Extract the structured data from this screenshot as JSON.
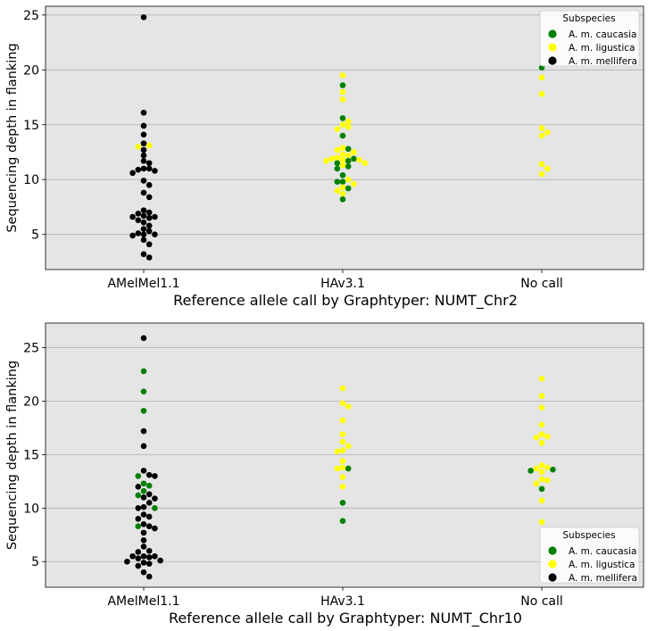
{
  "colors": {
    "plot_bg": "#e5e5e5",
    "grid": "#b0b0b0",
    "A. m. caucasia": "#008000",
    "A. m. ligustica": "#ffff00",
    "A. m. mellifera": "#000000"
  },
  "chart_data": [
    {
      "type": "scatter",
      "style": "swarm",
      "categories": [
        "AMelMel1.1",
        "HAv3.1",
        "No call"
      ],
      "xlabel": "Reference allele call by Graphtyper: NUMT_Chr2",
      "ylabel": "Sequencing depth in flanking",
      "ylim": [
        1.8,
        25.8
      ],
      "yticks": [
        5,
        10,
        15,
        20,
        25
      ],
      "grid": "horizontal",
      "legend": {
        "title": "Subspecies",
        "position": "top-right",
        "entries": [
          "A. m. caucasia",
          "A. m. ligustica",
          "A. m. mellifera"
        ]
      },
      "points": [
        {
          "c": 0,
          "s": "A. m. mellifera",
          "y": 24.8
        },
        {
          "c": 0,
          "s": "A. m. mellifera",
          "y": 16.1
        },
        {
          "c": 0,
          "s": "A. m. mellifera",
          "y": 14.9
        },
        {
          "c": 0,
          "s": "A. m. mellifera",
          "y": 14.1
        },
        {
          "c": 0,
          "s": "A. m. mellifera",
          "y": 13.3
        },
        {
          "c": 0,
          "s": "A. m. ligustica",
          "y": 13.1
        },
        {
          "c": 0,
          "s": "A. m. ligustica",
          "y": 13.0
        },
        {
          "c": 0,
          "s": "A. m. mellifera",
          "y": 12.7
        },
        {
          "c": 0,
          "s": "A. m. mellifera",
          "y": 12.2
        },
        {
          "c": 0,
          "s": "A. m. mellifera",
          "y": 11.7
        },
        {
          "c": 0,
          "s": "A. m. mellifera",
          "y": 11.5
        },
        {
          "c": 0,
          "s": "A. m. mellifera",
          "y": 11.0
        },
        {
          "c": 0,
          "s": "A. m. mellifera",
          "y": 11.0
        },
        {
          "c": 0,
          "s": "A. m. mellifera",
          "y": 10.9
        },
        {
          "c": 0,
          "s": "A. m. mellifera",
          "y": 10.8
        },
        {
          "c": 0,
          "s": "A. m. mellifera",
          "y": 10.6
        },
        {
          "c": 0,
          "s": "A. m. mellifera",
          "y": 9.9
        },
        {
          "c": 0,
          "s": "A. m. mellifera",
          "y": 9.5
        },
        {
          "c": 0,
          "s": "A. m. mellifera",
          "y": 8.8
        },
        {
          "c": 0,
          "s": "A. m. mellifera",
          "y": 8.4
        },
        {
          "c": 0,
          "s": "A. m. mellifera",
          "y": 7.2
        },
        {
          "c": 0,
          "s": "A. m. mellifera",
          "y": 7.0
        },
        {
          "c": 0,
          "s": "A. m. mellifera",
          "y": 6.9
        },
        {
          "c": 0,
          "s": "A. m. mellifera",
          "y": 6.7
        },
        {
          "c": 0,
          "s": "A. m. mellifera",
          "y": 6.6
        },
        {
          "c": 0,
          "s": "A. m. mellifera",
          "y": 6.6
        },
        {
          "c": 0,
          "s": "A. m. mellifera",
          "y": 6.5
        },
        {
          "c": 0,
          "s": "A. m. mellifera",
          "y": 6.3
        },
        {
          "c": 0,
          "s": "A. m. mellifera",
          "y": 6.1
        },
        {
          "c": 0,
          "s": "A. m. mellifera",
          "y": 5.8
        },
        {
          "c": 0,
          "s": "A. m. mellifera",
          "y": 5.5
        },
        {
          "c": 0,
          "s": "A. m. mellifera",
          "y": 5.3
        },
        {
          "c": 0,
          "s": "A. m. mellifera",
          "y": 5.1
        },
        {
          "c": 0,
          "s": "A. m. mellifera",
          "y": 5.0
        },
        {
          "c": 0,
          "s": "A. m. mellifera",
          "y": 5.0
        },
        {
          "c": 0,
          "s": "A. m. mellifera",
          "y": 4.9
        },
        {
          "c": 0,
          "s": "A. m. mellifera",
          "y": 4.5
        },
        {
          "c": 0,
          "s": "A. m. mellifera",
          "y": 4.1
        },
        {
          "c": 0,
          "s": "A. m. mellifera",
          "y": 3.2
        },
        {
          "c": 0,
          "s": "A. m. mellifera",
          "y": 2.9
        },
        {
          "c": 1,
          "s": "A. m. ligustica",
          "y": 19.5
        },
        {
          "c": 1,
          "s": "A. m. caucasia",
          "y": 18.6
        },
        {
          "c": 1,
          "s": "A. m. ligustica",
          "y": 18.0
        },
        {
          "c": 1,
          "s": "A. m. ligustica",
          "y": 17.3
        },
        {
          "c": 1,
          "s": "A. m. caucasia",
          "y": 15.6
        },
        {
          "c": 1,
          "s": "A. m. ligustica",
          "y": 15.3
        },
        {
          "c": 1,
          "s": "A. m. ligustica",
          "y": 15.0
        },
        {
          "c": 1,
          "s": "A. m. ligustica",
          "y": 14.8
        },
        {
          "c": 1,
          "s": "A. m. ligustica",
          "y": 14.6
        },
        {
          "c": 1,
          "s": "A. m. caucasia",
          "y": 14.0
        },
        {
          "c": 1,
          "s": "A. m. caucasia",
          "y": 12.8
        },
        {
          "c": 1,
          "s": "A. m. ligustica",
          "y": 12.9
        },
        {
          "c": 1,
          "s": "A. m. ligustica",
          "y": 12.7
        },
        {
          "c": 1,
          "s": "A. m. ligustica",
          "y": 12.5
        },
        {
          "c": 1,
          "s": "A. m. ligustica",
          "y": 12.3
        },
        {
          "c": 1,
          "s": "A. m. ligustica",
          "y": 12.2
        },
        {
          "c": 1,
          "s": "A. m. ligustica",
          "y": 12.0
        },
        {
          "c": 1,
          "s": "A. m. caucasia",
          "y": 11.9
        },
        {
          "c": 1,
          "s": "A. m. ligustica",
          "y": 11.9
        },
        {
          "c": 1,
          "s": "A. m. ligustica",
          "y": 11.8
        },
        {
          "c": 1,
          "s": "A. m. ligustica",
          "y": 11.8
        },
        {
          "c": 1,
          "s": "A. m. caucasia",
          "y": 11.7
        },
        {
          "c": 1,
          "s": "A. m. ligustica",
          "y": 11.7
        },
        {
          "c": 1,
          "s": "A. m. caucasia",
          "y": 11.5
        },
        {
          "c": 1,
          "s": "A. m. ligustica",
          "y": 11.5
        },
        {
          "c": 1,
          "s": "A. m. ligustica",
          "y": 11.3
        },
        {
          "c": 1,
          "s": "A. m. caucasia",
          "y": 11.2
        },
        {
          "c": 1,
          "s": "A. m. caucasia",
          "y": 11.0
        },
        {
          "c": 1,
          "s": "A. m. caucasia",
          "y": 10.4
        },
        {
          "c": 1,
          "s": "A. m. ligustica",
          "y": 10.0
        },
        {
          "c": 1,
          "s": "A. m. caucasia",
          "y": 9.8
        },
        {
          "c": 1,
          "s": "A. m. caucasia",
          "y": 9.8
        },
        {
          "c": 1,
          "s": "A. m. ligustica",
          "y": 9.6
        },
        {
          "c": 1,
          "s": "A. m. ligustica",
          "y": 9.3
        },
        {
          "c": 1,
          "s": "A. m. caucasia",
          "y": 9.2
        },
        {
          "c": 1,
          "s": "A. m. ligustica",
          "y": 9.0
        },
        {
          "c": 1,
          "s": "A. m. ligustica",
          "y": 8.7
        },
        {
          "c": 1,
          "s": "A. m. caucasia",
          "y": 8.2
        },
        {
          "c": 2,
          "s": "A. m. caucasia",
          "y": 20.2
        },
        {
          "c": 2,
          "s": "A. m. ligustica",
          "y": 19.3
        },
        {
          "c": 2,
          "s": "A. m. ligustica",
          "y": 17.8
        },
        {
          "c": 2,
          "s": "A. m. ligustica",
          "y": 14.7
        },
        {
          "c": 2,
          "s": "A. m. ligustica",
          "y": 14.3
        },
        {
          "c": 2,
          "s": "A. m. ligustica",
          "y": 14.0
        },
        {
          "c": 2,
          "s": "A. m. ligustica",
          "y": 11.4
        },
        {
          "c": 2,
          "s": "A. m. ligustica",
          "y": 11.0
        },
        {
          "c": 2,
          "s": "A. m. ligustica",
          "y": 10.5
        }
      ]
    },
    {
      "type": "scatter",
      "style": "swarm",
      "categories": [
        "AMelMel1.1",
        "HAv3.1",
        "No call"
      ],
      "xlabel": "Reference allele call by Graphtyper: NUMT_Chr10",
      "ylabel": "Sequencing depth in flanking",
      "ylim": [
        2.6,
        27.3
      ],
      "yticks": [
        5,
        10,
        15,
        20,
        25
      ],
      "grid": "horizontal",
      "legend": {
        "title": "Subspecies",
        "position": "bottom-right",
        "entries": [
          "A. m. caucasia",
          "A. m. ligustica",
          "A. m. mellifera"
        ]
      },
      "points": [
        {
          "c": 0,
          "s": "A. m. mellifera",
          "y": 25.9
        },
        {
          "c": 0,
          "s": "A. m. caucasia",
          "y": 22.8
        },
        {
          "c": 0,
          "s": "A. m. caucasia",
          "y": 20.9
        },
        {
          "c": 0,
          "s": "A. m. caucasia",
          "y": 19.1
        },
        {
          "c": 0,
          "s": "A. m. mellifera",
          "y": 17.2
        },
        {
          "c": 0,
          "s": "A. m. mellifera",
          "y": 15.8
        },
        {
          "c": 0,
          "s": "A. m. mellifera",
          "y": 13.5
        },
        {
          "c": 0,
          "s": "A. m. mellifera",
          "y": 13.1
        },
        {
          "c": 0,
          "s": "A. m. caucasia",
          "y": 13.0
        },
        {
          "c": 0,
          "s": "A. m. mellifera",
          "y": 13.0
        },
        {
          "c": 0,
          "s": "A. m. caucasia",
          "y": 12.3
        },
        {
          "c": 0,
          "s": "A. m. caucasia",
          "y": 12.1
        },
        {
          "c": 0,
          "s": "A. m. mellifera",
          "y": 12.0
        },
        {
          "c": 0,
          "s": "A. m. caucasia",
          "y": 11.6
        },
        {
          "c": 0,
          "s": "A. m. mellifera",
          "y": 11.3
        },
        {
          "c": 0,
          "s": "A. m. caucasia",
          "y": 11.2
        },
        {
          "c": 0,
          "s": "A. m. mellifera",
          "y": 11.0
        },
        {
          "c": 0,
          "s": "A. m. mellifera",
          "y": 10.9
        },
        {
          "c": 0,
          "s": "A. m. mellifera",
          "y": 10.5
        },
        {
          "c": 0,
          "s": "A. m. mellifera",
          "y": 10.1
        },
        {
          "c": 0,
          "s": "A. m. mellifera",
          "y": 10.0
        },
        {
          "c": 0,
          "s": "A. m. caucasia",
          "y": 10.0
        },
        {
          "c": 0,
          "s": "A. m. mellifera",
          "y": 9.4
        },
        {
          "c": 0,
          "s": "A. m. mellifera",
          "y": 9.2
        },
        {
          "c": 0,
          "s": "A. m. mellifera",
          "y": 9.0
        },
        {
          "c": 0,
          "s": "A. m. mellifera",
          "y": 8.5
        },
        {
          "c": 0,
          "s": "A. m. mellifera",
          "y": 8.3
        },
        {
          "c": 0,
          "s": "A. m. caucasia",
          "y": 8.3
        },
        {
          "c": 0,
          "s": "A. m. mellifera",
          "y": 8.1
        },
        {
          "c": 0,
          "s": "A. m. mellifera",
          "y": 7.7
        },
        {
          "c": 0,
          "s": "A. m. mellifera",
          "y": 7.0
        },
        {
          "c": 0,
          "s": "A. m. mellifera",
          "y": 6.4
        },
        {
          "c": 0,
          "s": "A. m. mellifera",
          "y": 6.0
        },
        {
          "c": 0,
          "s": "A. m. mellifera",
          "y": 5.9
        },
        {
          "c": 0,
          "s": "A. m. mellifera",
          "y": 5.5
        },
        {
          "c": 0,
          "s": "A. m. mellifera",
          "y": 5.5
        },
        {
          "c": 0,
          "s": "A. m. mellifera",
          "y": 5.5
        },
        {
          "c": 0,
          "s": "A. m. mellifera",
          "y": 5.4
        },
        {
          "c": 0,
          "s": "A. m. mellifera",
          "y": 5.3
        },
        {
          "c": 0,
          "s": "A. m. mellifera",
          "y": 5.1
        },
        {
          "c": 0,
          "s": "A. m. mellifera",
          "y": 5.0
        },
        {
          "c": 0,
          "s": "A. m. mellifera",
          "y": 4.9
        },
        {
          "c": 0,
          "s": "A. m. mellifera",
          "y": 4.8
        },
        {
          "c": 0,
          "s": "A. m. mellifera",
          "y": 4.6
        },
        {
          "c": 0,
          "s": "A. m. mellifera",
          "y": 4.0
        },
        {
          "c": 0,
          "s": "A. m. mellifera",
          "y": 3.6
        },
        {
          "c": 1,
          "s": "A. m. ligustica",
          "y": 21.2
        },
        {
          "c": 1,
          "s": "A. m. ligustica",
          "y": 19.8
        },
        {
          "c": 1,
          "s": "A. m. ligustica",
          "y": 19.5
        },
        {
          "c": 1,
          "s": "A. m. ligustica",
          "y": 18.2
        },
        {
          "c": 1,
          "s": "A. m. ligustica",
          "y": 16.9
        },
        {
          "c": 1,
          "s": "A. m. ligustica",
          "y": 16.2
        },
        {
          "c": 1,
          "s": "A. m. ligustica",
          "y": 15.8
        },
        {
          "c": 1,
          "s": "A. m. ligustica",
          "y": 15.4
        },
        {
          "c": 1,
          "s": "A. m. ligustica",
          "y": 15.3
        },
        {
          "c": 1,
          "s": "A. m. ligustica",
          "y": 14.4
        },
        {
          "c": 1,
          "s": "A. m. ligustica",
          "y": 13.8
        },
        {
          "c": 1,
          "s": "A. m. caucasia",
          "y": 13.7
        },
        {
          "c": 1,
          "s": "A. m. ligustica",
          "y": 13.7
        },
        {
          "c": 1,
          "s": "A. m. ligustica",
          "y": 12.9
        },
        {
          "c": 1,
          "s": "A. m. ligustica",
          "y": 12.0
        },
        {
          "c": 1,
          "s": "A. m. caucasia",
          "y": 10.5
        },
        {
          "c": 1,
          "s": "A. m. caucasia",
          "y": 8.8
        },
        {
          "c": 2,
          "s": "A. m. ligustica",
          "y": 22.1
        },
        {
          "c": 2,
          "s": "A. m. ligustica",
          "y": 20.5
        },
        {
          "c": 2,
          "s": "A. m. ligustica",
          "y": 19.4
        },
        {
          "c": 2,
          "s": "A. m. ligustica",
          "y": 17.8
        },
        {
          "c": 2,
          "s": "A. m. ligustica",
          "y": 16.9
        },
        {
          "c": 2,
          "s": "A. m. ligustica",
          "y": 16.7
        },
        {
          "c": 2,
          "s": "A. m. ligustica",
          "y": 16.6
        },
        {
          "c": 2,
          "s": "A. m. ligustica",
          "y": 16.1
        },
        {
          "c": 2,
          "s": "A. m. ligustica",
          "y": 14.0
        },
        {
          "c": 2,
          "s": "A. m. ligustica",
          "y": 13.8
        },
        {
          "c": 2,
          "s": "A. m. ligustica",
          "y": 13.7
        },
        {
          "c": 2,
          "s": "A. m. caucasia",
          "y": 13.6
        },
        {
          "c": 2,
          "s": "A. m. caucasia",
          "y": 13.5
        },
        {
          "c": 2,
          "s": "A. m. ligustica",
          "y": 13.4
        },
        {
          "c": 2,
          "s": "A. m. ligustica",
          "y": 12.7
        },
        {
          "c": 2,
          "s": "A. m. ligustica",
          "y": 12.6
        },
        {
          "c": 2,
          "s": "A. m. ligustica",
          "y": 12.3
        },
        {
          "c": 2,
          "s": "A. m. caucasia",
          "y": 11.8
        },
        {
          "c": 2,
          "s": "A. m. ligustica",
          "y": 10.7
        },
        {
          "c": 2,
          "s": "A. m. ligustica",
          "y": 8.7
        }
      ]
    }
  ]
}
